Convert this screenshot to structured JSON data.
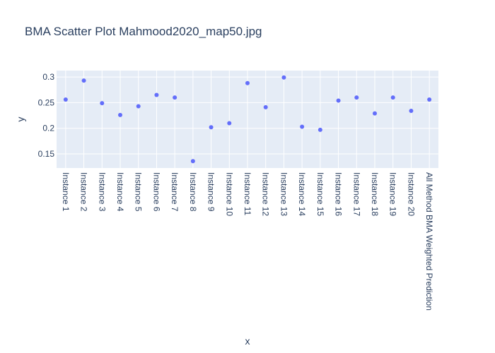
{
  "chart_data": {
    "type": "scatter",
    "title": "BMA Scatter Plot Mahmood2020_map50.jpg",
    "xlabel": "x",
    "ylabel": "y",
    "categories": [
      "Instance 1",
      "Instance 2",
      "Instance 3",
      "Instance 4",
      "Instance 5",
      "Instance 6",
      "Instance 7",
      "Instance 8",
      "Instance 9",
      "Instance 10",
      "Instance 11",
      "Instance 12",
      "Instance 13",
      "Instance 14",
      "Instance 15",
      "Instance 16",
      "Instance 17",
      "Instance 18",
      "Instance 19",
      "Instance 20",
      "All Method BMA Weighted Prediction"
    ],
    "values": [
      0.256,
      0.293,
      0.249,
      0.226,
      0.243,
      0.265,
      0.26,
      0.136,
      0.202,
      0.21,
      0.288,
      0.241,
      0.299,
      0.203,
      0.197,
      0.254,
      0.26,
      0.229,
      0.26,
      0.234,
      0.256
    ],
    "yticks": [
      0.15,
      0.2,
      0.25,
      0.3
    ],
    "ytick_labels": [
      "0.15",
      "0.2",
      "0.25",
      "0.3"
    ],
    "ylim": [
      0.1225,
      0.3125
    ],
    "grid": true,
    "colors": {
      "marker": "#636efa",
      "plot_bg": "#e5ecf6",
      "grid": "#ffffff",
      "text": "#2a3f5f"
    }
  }
}
